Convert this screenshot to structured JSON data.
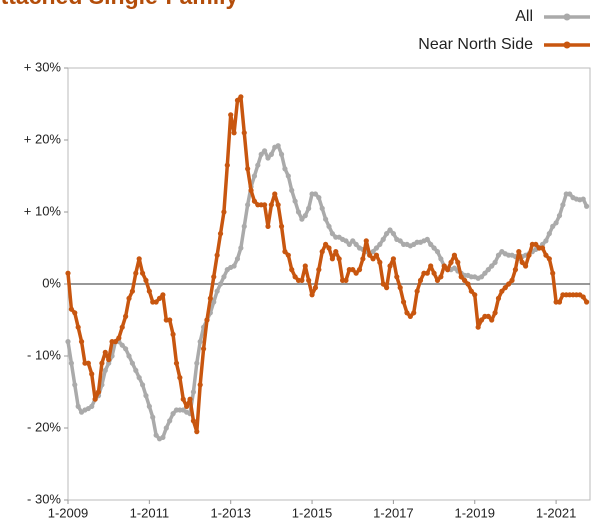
{
  "chart_data": {
    "type": "line",
    "title": "Attached Single-Family",
    "categories": [
      "1-2009",
      null,
      null,
      null,
      null,
      null,
      null,
      null,
      null,
      null,
      null,
      null,
      null,
      null,
      null,
      null,
      null,
      null,
      null,
      null,
      null,
      null,
      null,
      null,
      "1-2011",
      null,
      null,
      null,
      null,
      null,
      null,
      null,
      null,
      null,
      null,
      null,
      null,
      null,
      null,
      null,
      null,
      null,
      null,
      null,
      null,
      null,
      null,
      null,
      "1-2013",
      null,
      null,
      null,
      null,
      null,
      null,
      null,
      null,
      null,
      null,
      null,
      null,
      null,
      null,
      null,
      null,
      null,
      null,
      null,
      null,
      null,
      null,
      null,
      "1-2015",
      null,
      null,
      null,
      null,
      null,
      null,
      null,
      null,
      null,
      null,
      null,
      null,
      null,
      null,
      null,
      null,
      null,
      null,
      null,
      null,
      null,
      null,
      null,
      "1-2017",
      null,
      null,
      null,
      null,
      null,
      null,
      null,
      null,
      null,
      null,
      null,
      null,
      null,
      null,
      null,
      null,
      null,
      null,
      null,
      null,
      null,
      null,
      null,
      "1-2019",
      null,
      null,
      null,
      null,
      null,
      null,
      null,
      null,
      null,
      null,
      null,
      null,
      null,
      null,
      null,
      null,
      null,
      null,
      null,
      null,
      null,
      null,
      null,
      "1-2021",
      null,
      null,
      null,
      null,
      null,
      null,
      null,
      null,
      null
    ],
    "series": [
      {
        "name": "All",
        "color": "#aaaaaa",
        "values": [
          -8,
          -11,
          -14,
          -17,
          -17.8,
          -17.5,
          -17.3,
          -17,
          -16,
          -15.5,
          -14,
          -12,
          -11,
          -10,
          -8,
          -8,
          -8.5,
          -9,
          -10,
          -11,
          -12,
          -13,
          -14,
          -15.5,
          -17,
          -18.5,
          -21,
          -21.5,
          -21.3,
          -20,
          -19,
          -18,
          -17.5,
          -17.5,
          -17.5,
          -17.8,
          -18,
          -15,
          -11,
          -8,
          -6,
          -5,
          -4,
          -2.5,
          -1,
          0,
          1,
          2,
          2.3,
          2.5,
          3.5,
          5,
          8,
          11,
          13.5,
          15,
          16.5,
          18,
          18.5,
          17.5,
          18,
          19,
          19.2,
          18,
          16,
          15,
          13,
          11.5,
          10,
          9,
          9.5,
          10.5,
          12.5,
          12.5,
          12,
          10.5,
          9,
          8,
          7,
          6.5,
          6.5,
          6.2,
          6,
          5.5,
          6,
          5.5,
          5,
          4.8,
          4.5,
          4.2,
          4.5,
          5,
          5.5,
          6.2,
          7,
          7.5,
          7,
          6.2,
          6,
          5.5,
          5.5,
          5.3,
          5.5,
          5.8,
          5.8,
          6,
          6.2,
          5.5,
          5,
          4.5,
          3.5,
          2.5,
          2,
          2,
          2.2,
          1.8,
          1.5,
          1.2,
          1.2,
          1,
          1,
          0.8,
          1,
          1.5,
          2,
          2.5,
          3,
          4,
          4.5,
          4.2,
          4,
          4,
          3.8,
          3.5,
          3.8,
          4,
          4.2,
          4.5,
          4.8,
          5,
          5.5,
          6,
          7,
          8,
          8.5,
          9.5,
          11,
          12.5,
          12.5,
          12,
          11.8,
          11.7,
          11.8,
          10.8
        ]
      },
      {
        "name": "Near North Side",
        "color": "#c8560f",
        "values": [
          1.5,
          -3.5,
          -4,
          -6,
          -8,
          -11,
          -11,
          -12.5,
          -16,
          -15,
          -11,
          -9.5,
          -10.5,
          -8,
          -8,
          -7.5,
          -6,
          -4.5,
          -2,
          -1,
          1.5,
          3.5,
          1.5,
          0.5,
          -1,
          -2.5,
          -2.5,
          -2,
          -1.5,
          -5,
          -5,
          -7,
          -11,
          -13,
          -16,
          -17,
          -16,
          -19,
          -20.5,
          -14,
          -9,
          -5,
          -2,
          1,
          4,
          7,
          10,
          16.5,
          23.5,
          21,
          25.5,
          26,
          21,
          16,
          13,
          11.5,
          11,
          11,
          11,
          8,
          11,
          12.5,
          11,
          8,
          4.5,
          4,
          2,
          1,
          0.5,
          0.5,
          2.5,
          0.5,
          -1.5,
          -0.5,
          2,
          4.5,
          5.5,
          5,
          3.5,
          4.5,
          3.5,
          0.5,
          0.5,
          2,
          2,
          1.5,
          2,
          3.5,
          6,
          4,
          3.5,
          4,
          3,
          0,
          -0.5,
          2.5,
          3.5,
          1,
          -0.5,
          -2.5,
          -4,
          -4.5,
          -4,
          -1,
          0.5,
          1.5,
          1.5,
          2.5,
          1.5,
          0.5,
          1,
          2.5,
          2,
          3,
          4,
          3,
          1,
          0.5,
          0,
          -1,
          -1.5,
          -6,
          -5,
          -4.5,
          -4.5,
          -5,
          -4,
          -2,
          -1,
          -0.5,
          0,
          0.5,
          2,
          4.5,
          3,
          2.5,
          4,
          5.5,
          5.5,
          5,
          5,
          4,
          3.5,
          1.5,
          -2.5,
          -2.5,
          -1.5,
          -1.5,
          -1.5,
          -1.5,
          -1.5,
          -1.5,
          -1.8,
          -2.5
        ]
      }
    ],
    "ylim": [
      -30,
      30
    ],
    "yticks": [
      {
        "value": -30,
        "label": "- 30%"
      },
      {
        "value": -20,
        "label": "- 20%"
      },
      {
        "value": -10,
        "label": "- 10%"
      },
      {
        "value": 0,
        "label": "0%"
      },
      {
        "value": 10,
        "label": "+ 10%"
      },
      {
        "value": 20,
        "label": "+ 20%"
      },
      {
        "value": 30,
        "label": "+ 30%"
      }
    ],
    "legend": "top-right"
  }
}
